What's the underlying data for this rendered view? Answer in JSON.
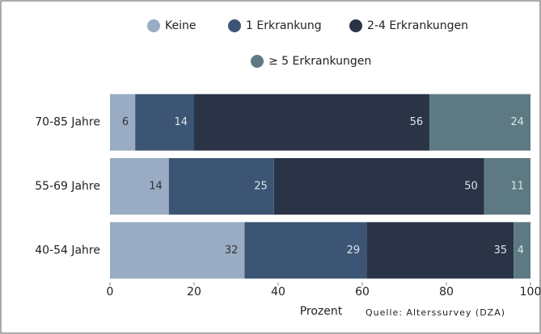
{
  "chart_data": {
    "type": "stacked_barh",
    "categories": [
      "70-85 Jahre",
      "55-69 Jahre",
      "40-54 Jahre"
    ],
    "series": [
      {
        "name": "Keine",
        "color": "#9aabc4",
        "values": [
          6,
          14,
          32
        ]
      },
      {
        "name": "1 Erkrankung",
        "color": "#3c5574",
        "values": [
          14,
          25,
          29
        ]
      },
      {
        "name": "2-4 Erkrankungen",
        "color": "#2b3447",
        "values": [
          56,
          50,
          35
        ]
      },
      {
        "name": "≥ 5 Erkrankungen",
        "color": "#5d7a83",
        "values": [
          24,
          11,
          4
        ]
      }
    ],
    "xlabel": "Prozent",
    "source": "Quelle: Alterssurvey (DZA)",
    "xlim": [
      0,
      100
    ],
    "xticks": [
      0,
      20,
      40,
      60,
      80,
      100
    ]
  }
}
